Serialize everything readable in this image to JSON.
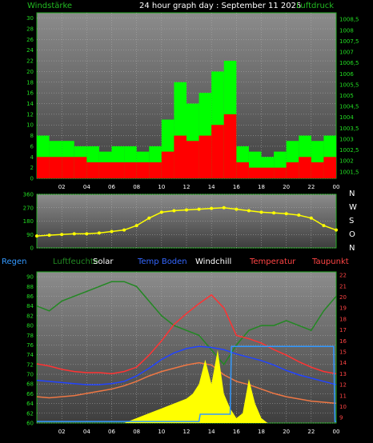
{
  "chart_data": [
    {
      "type": "line",
      "title": "24 hour graph day : September 11 2025",
      "left_axis_label": "Windstärke",
      "right_axis_label": "Luftdruck",
      "x_ticks": [
        "02",
        "04",
        "06",
        "08",
        "10",
        "12",
        "14",
        "16",
        "18",
        "20",
        "22",
        "00"
      ],
      "y_left_ticks": [
        "0",
        "2",
        "4",
        "6",
        "8",
        "10",
        "12",
        "14",
        "16",
        "18",
        "20",
        "22",
        "24",
        "26",
        "28",
        "30"
      ],
      "y_left_range": [
        0,
        31
      ],
      "y_right_ticks": [
        "1001,5",
        "1002",
        "1002,5",
        "1003",
        "1003,5",
        "1004",
        "1004,5",
        "1005",
        "1005,5",
        "1006",
        "1006,5",
        "1007",
        "1007,5",
        "1008",
        "1008,5"
      ],
      "y_right_range": [
        1001.2,
        1008.8
      ],
      "series": [
        {
          "role": "gust",
          "color": "#00ff00",
          "x": [
            0,
            1,
            2,
            3,
            4,
            5,
            6,
            7,
            8,
            9,
            10,
            11,
            12,
            13,
            14,
            15,
            16,
            17,
            18,
            19,
            20,
            21,
            22,
            23,
            24
          ],
          "values": [
            8,
            7,
            7,
            6,
            6,
            5,
            6,
            6,
            5,
            6,
            11,
            18,
            14,
            16,
            20,
            22,
            6,
            5,
            4,
            5,
            7,
            8,
            7,
            8,
            9
          ]
        },
        {
          "role": "wind",
          "color": "#ff0000",
          "x": [
            0,
            1,
            2,
            3,
            4,
            5,
            6,
            7,
            8,
            9,
            10,
            11,
            12,
            13,
            14,
            15,
            16,
            17,
            18,
            19,
            20,
            21,
            22,
            23,
            24
          ],
          "values": [
            4,
            4,
            4,
            4,
            3,
            3,
            3,
            3,
            3,
            3,
            5,
            8,
            7,
            8,
            10,
            12,
            3,
            2,
            2,
            2,
            3,
            4,
            3,
            4,
            4
          ]
        },
        {
          "role": "pressure",
          "color": "#33dddd",
          "x": [
            0,
            1,
            2,
            3,
            4,
            5,
            6,
            7,
            8,
            9,
            10,
            11,
            12,
            13,
            14,
            15,
            16,
            17,
            18,
            19,
            20,
            21,
            22,
            23,
            24
          ],
          "values": [
            1005.6,
            1005.2,
            1004.6,
            1003.8,
            1003.1,
            1002.6,
            1002.3,
            1002.2,
            1002.3,
            1002.5,
            1002.9,
            1003.0,
            1003.1,
            1003.5,
            1003.8,
            1004.3,
            1005.3,
            1005.5,
            1005.6,
            1005.8,
            1006.2,
            1006.8,
            1007.3,
            1007.4,
            1007.7
          ]
        }
      ]
    },
    {
      "type": "scatter",
      "right_labels": [
        "N",
        "W",
        "S",
        "O",
        "N"
      ],
      "x_ticks": [],
      "y_ticks": [
        "0",
        "90",
        "180",
        "270",
        "360"
      ],
      "y_range": [
        0,
        360
      ],
      "series": [
        {
          "role": "wind-direction",
          "color": "#ffff00",
          "x": [
            0,
            1,
            2,
            3,
            4,
            5,
            6,
            7,
            8,
            9,
            10,
            11,
            12,
            13,
            14,
            15,
            16,
            17,
            18,
            19,
            20,
            21,
            22,
            23,
            24
          ],
          "values": [
            80,
            85,
            90,
            95,
            95,
            100,
            110,
            120,
            150,
            200,
            240,
            250,
            255,
            260,
            265,
            270,
            260,
            250,
            240,
            235,
            230,
            220,
            200,
            150,
            120
          ]
        }
      ]
    },
    {
      "type": "line",
      "legend": [
        "Regen",
        "Luftfeuchte",
        "Solar",
        "Temp Boden",
        "Windchill",
        "Temperatur",
        "Taupunkt"
      ],
      "x_ticks": [
        "02",
        "04",
        "06",
        "08",
        "10",
        "12",
        "14",
        "16",
        "18",
        "20",
        "22",
        "00"
      ],
      "y_left_ticks": [
        "60",
        "62",
        "64",
        "66",
        "68",
        "70",
        "72",
        "74",
        "76",
        "78",
        "80",
        "82",
        "84",
        "86",
        "88",
        "90"
      ],
      "y_left_range": [
        60,
        91
      ],
      "y_right_ticks": [
        "9",
        "10",
        "11",
        "12",
        "13",
        "14",
        "15",
        "16",
        "17",
        "18",
        "19",
        "20",
        "21",
        "22"
      ],
      "y_right_range": [
        8.5,
        22.3
      ],
      "series": [
        {
          "role": "humidity",
          "color": "#228822",
          "axis": "left",
          "x": [
            0,
            1,
            2,
            3,
            4,
            5,
            6,
            7,
            8,
            9,
            10,
            11,
            12,
            13,
            14,
            15,
            16,
            17,
            18,
            19,
            20,
            21,
            22,
            23,
            24
          ],
          "values": [
            84,
            83,
            85,
            86,
            87,
            88,
            89,
            89,
            88,
            85,
            82,
            80,
            79,
            78,
            75,
            72,
            76,
            79,
            80,
            80,
            81,
            80,
            79,
            83,
            86
          ]
        },
        {
          "role": "temperature",
          "color": "#ff3333",
          "axis": "right",
          "x": [
            0,
            1,
            2,
            3,
            4,
            5,
            6,
            7,
            8,
            9,
            10,
            11,
            12,
            13,
            14,
            15,
            16,
            17,
            18,
            19,
            20,
            21,
            22,
            23,
            24
          ],
          "values": [
            13.9,
            13.7,
            13.4,
            13.2,
            13.1,
            13.1,
            13.0,
            13.2,
            13.6,
            14.7,
            16.0,
            17.5,
            18.5,
            19.4,
            20.2,
            19.0,
            16.5,
            16.2,
            15.8,
            15.2,
            14.7,
            14.1,
            13.6,
            13.2,
            13.0
          ]
        },
        {
          "role": "soil-temperature",
          "color": "#2244ff",
          "axis": "right",
          "x": [
            0,
            1,
            2,
            3,
            4,
            5,
            6,
            7,
            8,
            9,
            10,
            11,
            12,
            13,
            14,
            15,
            16,
            17,
            18,
            19,
            20,
            21,
            22,
            23,
            24
          ],
          "values": [
            12.4,
            12.3,
            12.2,
            12.1,
            12.0,
            12.0,
            12.1,
            12.3,
            12.8,
            13.5,
            14.3,
            14.9,
            15.3,
            15.5,
            15.4,
            15.2,
            14.8,
            14.5,
            14.2,
            13.8,
            13.3,
            12.9,
            12.6,
            12.3,
            12.0
          ]
        },
        {
          "role": "dew-point",
          "color": "#ee7744",
          "axis": "right",
          "x": [
            0,
            1,
            2,
            3,
            4,
            5,
            6,
            7,
            8,
            9,
            10,
            11,
            12,
            13,
            14,
            15,
            16,
            17,
            18,
            19,
            20,
            21,
            22,
            23,
            24
          ],
          "values": [
            10.9,
            10.8,
            10.9,
            11.0,
            11.2,
            11.4,
            11.6,
            11.9,
            12.3,
            12.8,
            13.2,
            13.5,
            13.8,
            14.0,
            13.8,
            12.9,
            12.3,
            12.0,
            11.6,
            11.2,
            10.9,
            10.7,
            10.5,
            10.4,
            10.3
          ]
        },
        {
          "role": "solar",
          "color": "#ffff00",
          "axis": "left",
          "x": [
            0,
            7,
            8,
            9,
            10,
            11,
            12,
            12.5,
            13,
            13.5,
            14,
            14.5,
            15,
            15.5,
            16,
            16.5,
            17,
            17.5,
            18,
            18.5,
            19,
            24
          ],
          "values": [
            60,
            60,
            61,
            62,
            63,
            64,
            65,
            66,
            68,
            73,
            68,
            75,
            66,
            63,
            61,
            62,
            69,
            64,
            61,
            60,
            60,
            60
          ]
        },
        {
          "role": "rain",
          "color": "#3399ff",
          "axis": "left",
          "x": [
            0,
            13,
            13.1,
            15.5,
            15.6,
            23.8,
            23.9,
            24
          ],
          "values": [
            60.3,
            60.3,
            61.8,
            61.8,
            75.7,
            75.7,
            60.3,
            60.3
          ]
        }
      ]
    }
  ]
}
